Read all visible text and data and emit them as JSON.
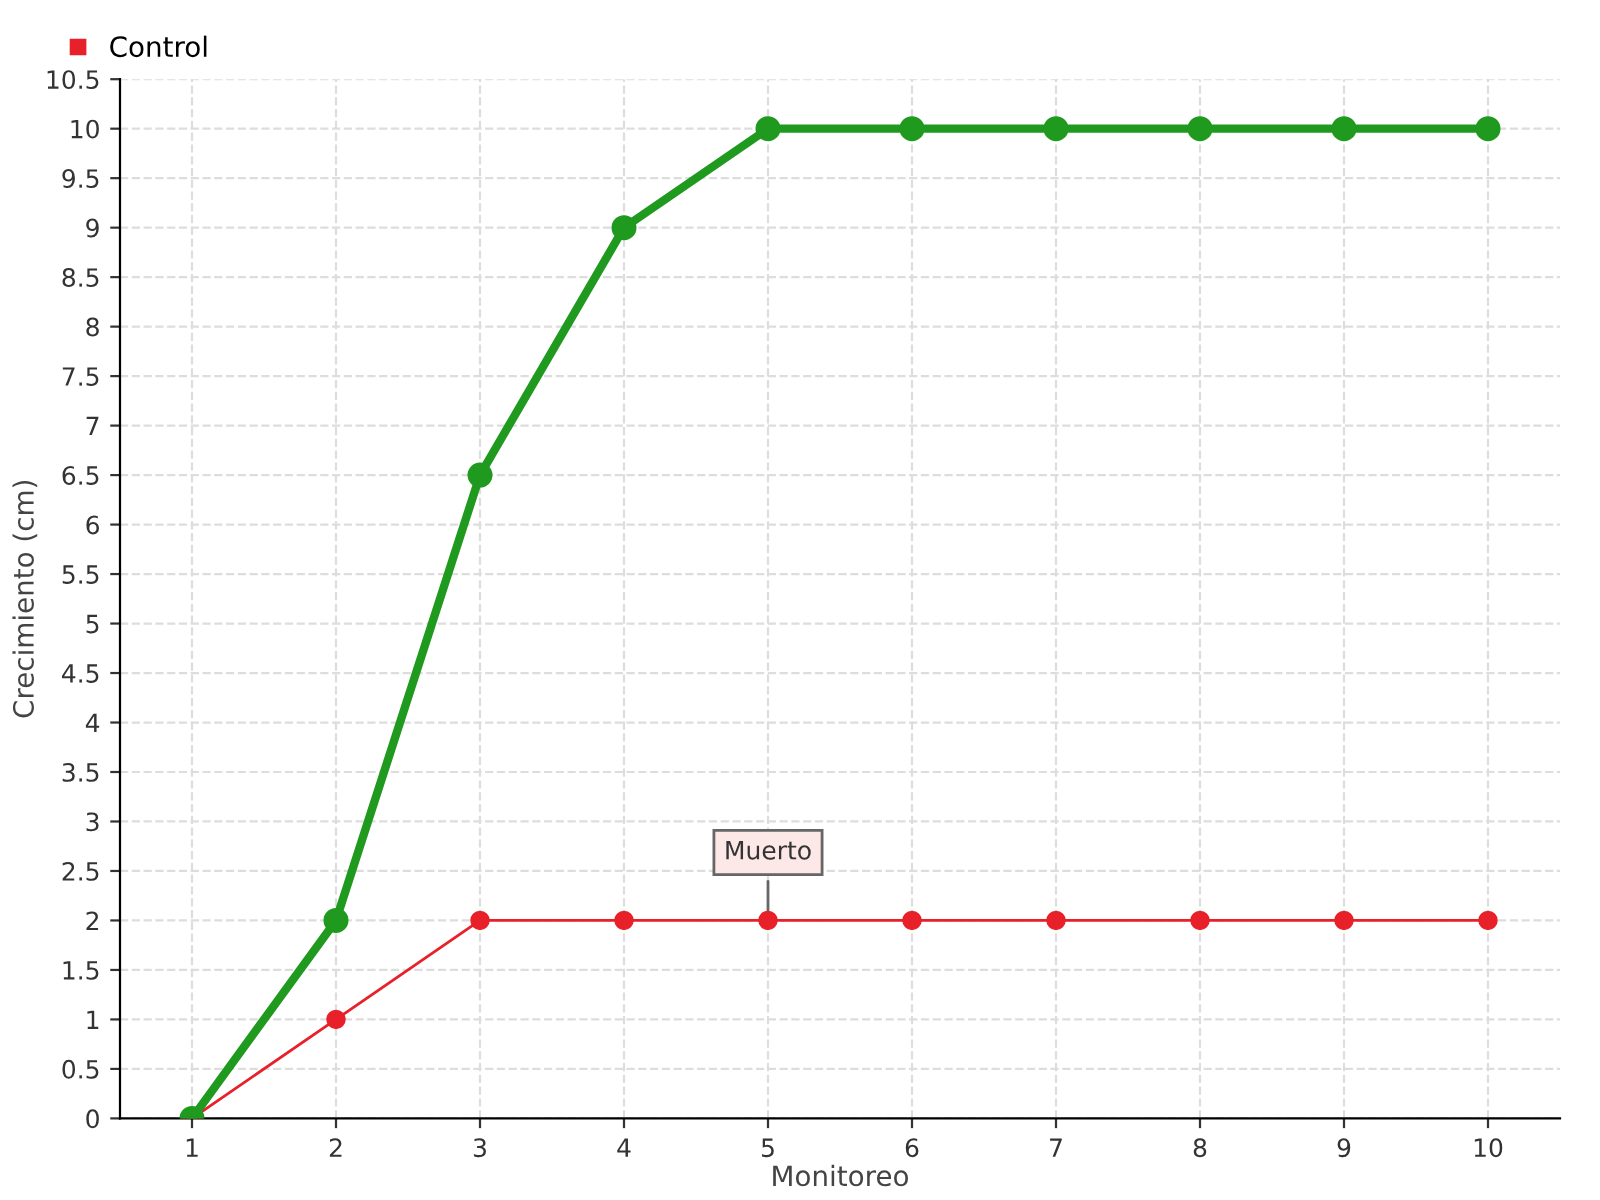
{
  "chart_data": {
    "type": "line",
    "xlabel": "Monitoreo",
    "ylabel": "Crecimiento (cm)",
    "categories": [
      "1",
      "2",
      "3",
      "4",
      "5",
      "6",
      "7",
      "8",
      "9",
      "10"
    ],
    "series": [
      {
        "color": "#1f9a1f",
        "values": [
          0,
          2,
          6.5,
          9,
          10,
          10,
          10,
          10,
          10,
          10
        ]
      },
      {
        "name": "Control",
        "color": "#e8202a",
        "values": [
          0,
          1,
          2,
          2,
          2,
          2,
          2,
          2,
          2,
          2
        ]
      }
    ],
    "ylim": [
      0,
      10.5
    ],
    "yticks": [
      0,
      0.5,
      1,
      1.5,
      2,
      2.5,
      3,
      3.5,
      4,
      4.5,
      5,
      5.5,
      6,
      6.5,
      7,
      7.5,
      8,
      8.5,
      9,
      9.5,
      10,
      10.5
    ],
    "annotations": [
      {
        "text": "Muerto",
        "x": "5",
        "y": 2
      }
    ],
    "grid": true,
    "legend": "top left",
    "marker": "circle",
    "line_style": "solid"
  }
}
